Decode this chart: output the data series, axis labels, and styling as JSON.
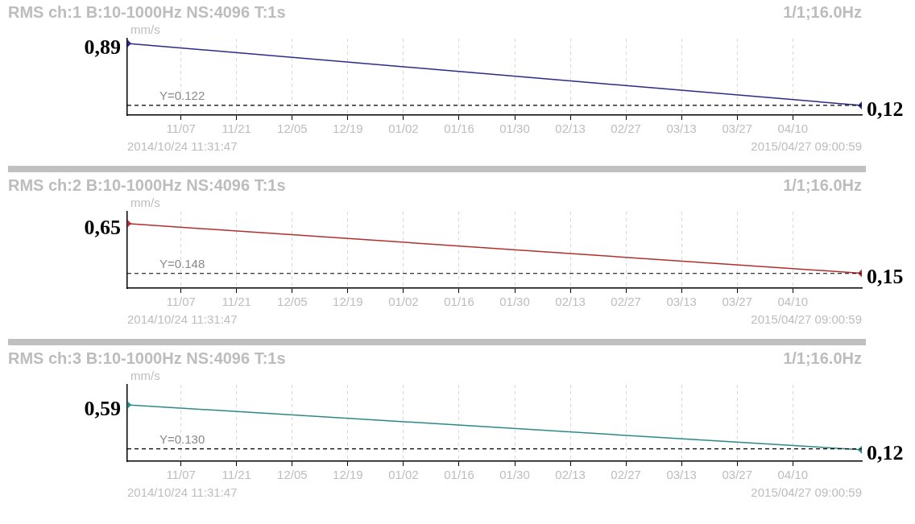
{
  "chart_data": [
    {
      "type": "line",
      "title": "RMS ch:1 B:10-1000Hz NS:4096 T:1s",
      "subtitle": "1/1;16.0Hz",
      "ylabel": "mm/s",
      "xlim": [
        "2014-10-24T11:31",
        "2015-04-27T09:00"
      ],
      "xticks": [
        {
          "value": "2014-11-07",
          "label": "11/07"
        },
        {
          "value": "2014-11-21",
          "label": "11/21"
        },
        {
          "value": "2014-12-05",
          "label": "12/05"
        },
        {
          "value": "2014-12-19",
          "label": "12/19"
        },
        {
          "value": "2015-01-02",
          "label": "01/02"
        },
        {
          "value": "2015-01-16",
          "label": "01/16"
        },
        {
          "value": "2015-01-30",
          "label": "01/30"
        },
        {
          "value": "2015-02-13",
          "label": "02/13"
        },
        {
          "value": "2015-02-27",
          "label": "02/27"
        },
        {
          "value": "2015-03-13",
          "label": "03/13"
        },
        {
          "value": "2015-03-27",
          "label": "03/27"
        },
        {
          "value": "2015-04-10",
          "label": "04/10"
        }
      ],
      "ylim": [
        0,
        0.95
      ],
      "tick_labels": "x",
      "grid": "x",
      "marker": "diamond",
      "series": [
        {
          "color": "#2a2a8a",
          "x": [
            "2014-10-24T11:31",
            "2015-04-27T09:00"
          ],
          "values": [
            0.89,
            0.12
          ],
          "value_labels": [
            "0,89",
            "0,12"
          ]
        }
      ],
      "ref_lines": [
        {
          "axis": "y",
          "value": 0.122,
          "label": "Y=0.122",
          "color": "#000000",
          "line_style": "dashed"
        }
      ],
      "annotations": [
        "2014/10/24 11:31:47",
        "2015/04/27 09:00:59"
      ]
    },
    {
      "type": "line",
      "title": "RMS ch:2 B:10-1000Hz NS:4096 T:1s",
      "subtitle": "1/1;16.0Hz",
      "ylabel": "mm/s",
      "xlim": [
        "2014-10-24T11:31",
        "2015-04-27T09:00"
      ],
      "xticks": [
        {
          "value": "2014-11-07",
          "label": "11/07"
        },
        {
          "value": "2014-11-21",
          "label": "11/21"
        },
        {
          "value": "2014-12-05",
          "label": "12/05"
        },
        {
          "value": "2014-12-19",
          "label": "12/19"
        },
        {
          "value": "2015-01-02",
          "label": "01/02"
        },
        {
          "value": "2015-01-16",
          "label": "01/16"
        },
        {
          "value": "2015-01-30",
          "label": "01/30"
        },
        {
          "value": "2015-02-13",
          "label": "02/13"
        },
        {
          "value": "2015-02-27",
          "label": "02/27"
        },
        {
          "value": "2015-03-13",
          "label": "03/13"
        },
        {
          "value": "2015-03-27",
          "label": "03/27"
        },
        {
          "value": "2015-04-10",
          "label": "04/10"
        }
      ],
      "ylim": [
        0,
        0.77
      ],
      "tick_labels": "x",
      "grid": "x",
      "marker": "diamond",
      "series": [
        {
          "color": "#b03030",
          "x": [
            "2014-10-24T11:31",
            "2015-04-27T09:00"
          ],
          "values": [
            0.65,
            0.15
          ],
          "value_labels": [
            "0,65",
            "0,15"
          ]
        }
      ],
      "ref_lines": [
        {
          "axis": "y",
          "value": 0.148,
          "label": "Y=0.148",
          "color": "#000000",
          "line_style": "dashed"
        }
      ],
      "annotations": [
        "2014/10/24 11:31:47",
        "2015/04/27 09:00:59"
      ]
    },
    {
      "type": "line",
      "title": "RMS ch:3 B:10-1000Hz NS:4096 T:1s",
      "subtitle": "1/1;16.0Hz",
      "ylabel": "mm/s",
      "xlim": [
        "2014-10-24T11:31",
        "2015-04-27T09:00"
      ],
      "xticks": [
        {
          "value": "2014-11-07",
          "label": "11/07"
        },
        {
          "value": "2014-11-21",
          "label": "11/21"
        },
        {
          "value": "2014-12-05",
          "label": "12/05"
        },
        {
          "value": "2014-12-19",
          "label": "12/19"
        },
        {
          "value": "2015-01-02",
          "label": "01/02"
        },
        {
          "value": "2015-01-16",
          "label": "01/16"
        },
        {
          "value": "2015-01-30",
          "label": "01/30"
        },
        {
          "value": "2015-02-13",
          "label": "02/13"
        },
        {
          "value": "2015-02-27",
          "label": "02/27"
        },
        {
          "value": "2015-03-13",
          "label": "03/13"
        },
        {
          "value": "2015-03-27",
          "label": "03/27"
        },
        {
          "value": "2015-04-10",
          "label": "04/10"
        }
      ],
      "ylim": [
        0,
        0.8
      ],
      "tick_labels": "x",
      "grid": "x",
      "marker": "diamond",
      "series": [
        {
          "color": "#2a8a8a",
          "x": [
            "2014-10-24T11:31",
            "2015-04-27T09:00"
          ],
          "values": [
            0.59,
            0.12
          ],
          "value_labels": [
            "0,59",
            "0,12"
          ]
        }
      ],
      "ref_lines": [
        {
          "axis": "y",
          "value": 0.13,
          "label": "Y=0.130",
          "color": "#000000",
          "line_style": "dashed"
        }
      ],
      "annotations": [
        "2014/10/24 11:31:47",
        "2015/04/27 09:00:59"
      ]
    }
  ]
}
